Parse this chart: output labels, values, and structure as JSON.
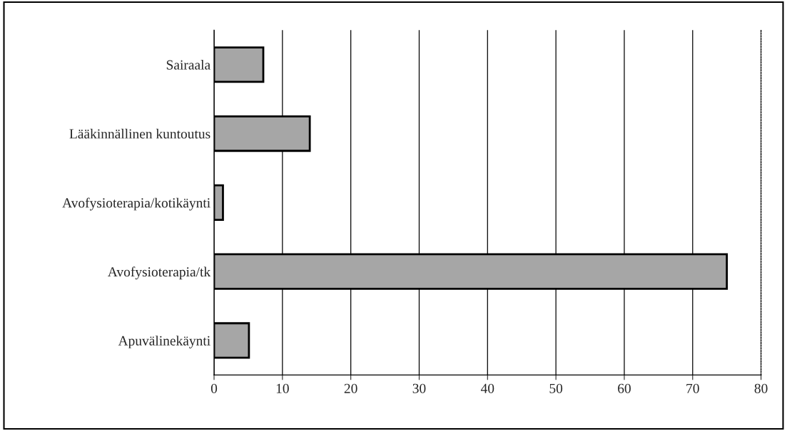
{
  "chart_data": {
    "type": "bar",
    "orientation": "horizontal",
    "categories": [
      "Sairaala",
      "Lääkinnällinen kuntoutus",
      "Avofysioterapia/kotikäynti",
      "Avofysioterapia/tk",
      "Apuvälinekäynti"
    ],
    "values": [
      7.2,
      14,
      1.3,
      75,
      5.1
    ],
    "color": "#a6a6a6",
    "xlim": [
      0,
      80
    ],
    "xticks": [
      0,
      10,
      20,
      30,
      40,
      50,
      60,
      70,
      80
    ],
    "grid": "x"
  }
}
